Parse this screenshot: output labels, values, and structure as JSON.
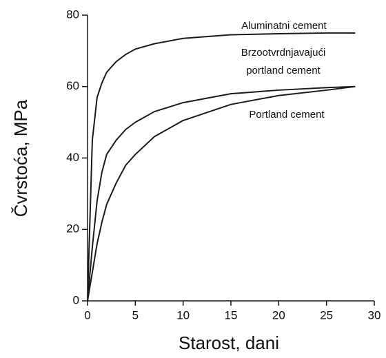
{
  "chart_data": {
    "type": "line",
    "x_label": "Starost, dani",
    "y_label": "Čvrstoća, MPa",
    "x": [
      0,
      0.5,
      1,
      1.5,
      2,
      3,
      4,
      5,
      7,
      10,
      15,
      20,
      25,
      28
    ],
    "series": [
      {
        "label": [
          "Aluminatni cement"
        ],
        "color": "#1a1a1a",
        "values": [
          0,
          45,
          57,
          61,
          64,
          67,
          69,
          70.5,
          72,
          73.5,
          74.5,
          74.8,
          75,
          75
        ]
      },
      {
        "label": [
          "Brzootvrdnjavajući",
          "portland cement"
        ],
        "color": "#1a1a1a",
        "values": [
          0,
          15,
          28,
          36,
          41,
          45,
          48,
          50,
          53,
          55.5,
          58,
          59,
          59.7,
          60
        ]
      },
      {
        "label": [
          "Portland cement"
        ],
        "color": "#1a1a1a",
        "values": [
          0,
          8,
          16,
          22,
          27,
          33,
          38,
          41,
          46,
          50.5,
          55,
          57.5,
          59,
          60
        ]
      }
    ],
    "xlim": [
      0,
      30
    ],
    "xticks": [
      0,
      5,
      10,
      15,
      20,
      25,
      30
    ],
    "ylim": [
      0,
      80
    ],
    "yticks": [
      0,
      20,
      40,
      60,
      80
    ]
  }
}
